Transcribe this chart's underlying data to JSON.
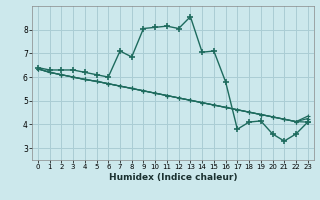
{
  "xlabel": "Humidex (Indice chaleur)",
  "bg_color": "#cce8ec",
  "grid_color": "#aacdd4",
  "line_color": "#1e6b5e",
  "xlim": [
    -0.5,
    23.5
  ],
  "ylim": [
    2.5,
    9.0
  ],
  "xticks": [
    0,
    1,
    2,
    3,
    4,
    5,
    6,
    7,
    8,
    9,
    10,
    11,
    12,
    13,
    14,
    15,
    16,
    17,
    18,
    19,
    20,
    21,
    22,
    23
  ],
  "yticks": [
    3,
    4,
    5,
    6,
    7,
    8
  ],
  "main_series": [
    6.4,
    6.3,
    6.3,
    6.3,
    6.2,
    6.1,
    6.0,
    7.1,
    6.85,
    8.05,
    8.1,
    8.15,
    8.05,
    8.55,
    7.05,
    7.1,
    5.8,
    3.8,
    4.1,
    4.15,
    3.6,
    3.3,
    3.6,
    4.1
  ],
  "trend1": [
    6.35,
    6.2,
    6.1,
    6.0,
    5.9,
    5.82,
    5.72,
    5.62,
    5.52,
    5.42,
    5.32,
    5.22,
    5.12,
    5.02,
    4.92,
    4.82,
    4.72,
    4.62,
    4.52,
    4.42,
    4.32,
    4.22,
    4.12,
    4.1
  ],
  "trend2": [
    6.35,
    6.2,
    6.1,
    6.0,
    5.9,
    5.82,
    5.72,
    5.62,
    5.52,
    5.42,
    5.32,
    5.22,
    5.12,
    5.02,
    4.92,
    4.82,
    4.72,
    4.62,
    4.52,
    4.42,
    4.32,
    4.22,
    4.12,
    4.25
  ],
  "trend3": [
    6.35,
    6.2,
    6.1,
    6.0,
    5.9,
    5.82,
    5.72,
    5.62,
    5.52,
    5.42,
    5.32,
    5.22,
    5.12,
    5.02,
    4.92,
    4.82,
    4.72,
    4.62,
    4.52,
    4.42,
    4.32,
    4.22,
    4.12,
    4.35
  ]
}
